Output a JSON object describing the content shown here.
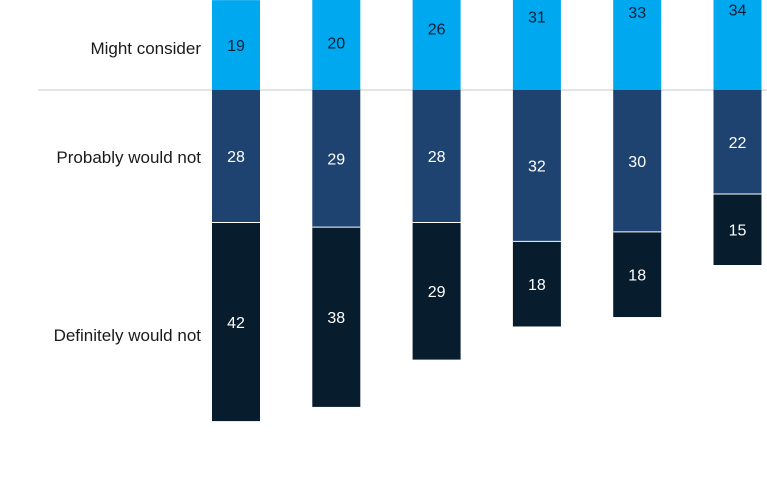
{
  "chart_data": {
    "type": "bar",
    "stacked": true,
    "diverging": true,
    "baseline_between": [
      "Might consider",
      "Probably would not"
    ],
    "categories": [
      "",
      "",
      "",
      "",
      "",
      ""
    ],
    "series": [
      {
        "name": "Definitely would not",
        "values": [
          42,
          38,
          29,
          18,
          18,
          15
        ],
        "color": "#071d2e",
        "label_color": "#ffffff"
      },
      {
        "name": "Probably would not",
        "values": [
          28,
          29,
          28,
          32,
          30,
          22
        ],
        "color": "#1e4371",
        "label_color": "#ffffff"
      },
      {
        "name": "Might consider",
        "values": [
          19,
          20,
          26,
          31,
          33,
          34
        ],
        "color": "#00a8f0",
        "label_color": "#0a1f33"
      }
    ],
    "row_labels": [
      "Might consider",
      "Probably would not",
      "Definitely would not"
    ],
    "baseline_color": "#c8c8c8"
  }
}
